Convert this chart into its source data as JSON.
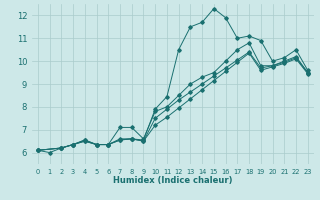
{
  "xlabel": "Humidex (Indice chaleur)",
  "background_color": "#cde8e8",
  "grid_color": "#aacccc",
  "line_color": "#1a7070",
  "xlim": [
    -0.5,
    23.5
  ],
  "ylim": [
    5.5,
    12.5
  ],
  "xticks": [
    0,
    1,
    2,
    3,
    4,
    5,
    6,
    7,
    8,
    9,
    10,
    11,
    12,
    13,
    14,
    15,
    16,
    17,
    18,
    19,
    20,
    21,
    22,
    23
  ],
  "yticks": [
    6,
    7,
    8,
    9,
    10,
    11,
    12
  ],
  "lines": [
    {
      "x": [
        0,
        1,
        2,
        3,
        4,
        5,
        6,
        7,
        8,
        9,
        10,
        11,
        12,
        13,
        14,
        15,
        16,
        17,
        18,
        19,
        20,
        21,
        22,
        23
      ],
      "y": [
        6.1,
        6.0,
        6.2,
        6.35,
        6.55,
        6.35,
        6.35,
        6.6,
        6.6,
        6.55,
        7.9,
        8.45,
        10.5,
        11.5,
        11.7,
        12.3,
        11.9,
        11.0,
        11.1,
        10.9,
        10.0,
        10.15,
        10.5,
        9.6
      ]
    },
    {
      "x": [
        0,
        2,
        3,
        4,
        5,
        6,
        7,
        8,
        9,
        10,
        11,
        12,
        13,
        14,
        15,
        16,
        17,
        18,
        19,
        20,
        21,
        22,
        23
      ],
      "y": [
        6.1,
        6.2,
        6.35,
        6.55,
        6.35,
        6.35,
        7.1,
        7.1,
        6.6,
        7.8,
        8.0,
        8.5,
        9.0,
        9.3,
        9.5,
        10.0,
        10.5,
        10.8,
        9.8,
        9.8,
        10.0,
        10.2,
        9.5
      ]
    },
    {
      "x": [
        0,
        2,
        3,
        4,
        5,
        6,
        7,
        8,
        9,
        10,
        11,
        12,
        13,
        14,
        15,
        16,
        17,
        18,
        19,
        20,
        21,
        22,
        23
      ],
      "y": [
        6.1,
        6.2,
        6.35,
        6.5,
        6.35,
        6.35,
        6.55,
        6.6,
        6.5,
        7.5,
        7.9,
        8.3,
        8.65,
        9.0,
        9.35,
        9.7,
        10.05,
        10.4,
        9.7,
        9.8,
        9.95,
        10.15,
        9.5
      ]
    },
    {
      "x": [
        0,
        2,
        3,
        4,
        5,
        6,
        7,
        8,
        9,
        10,
        11,
        12,
        13,
        14,
        15,
        16,
        17,
        18,
        19,
        20,
        21,
        22,
        23
      ],
      "y": [
        6.1,
        6.2,
        6.35,
        6.5,
        6.35,
        6.35,
        6.55,
        6.6,
        6.5,
        7.2,
        7.55,
        7.95,
        8.35,
        8.75,
        9.15,
        9.55,
        9.95,
        10.35,
        9.6,
        9.75,
        9.9,
        10.1,
        9.45
      ]
    }
  ]
}
